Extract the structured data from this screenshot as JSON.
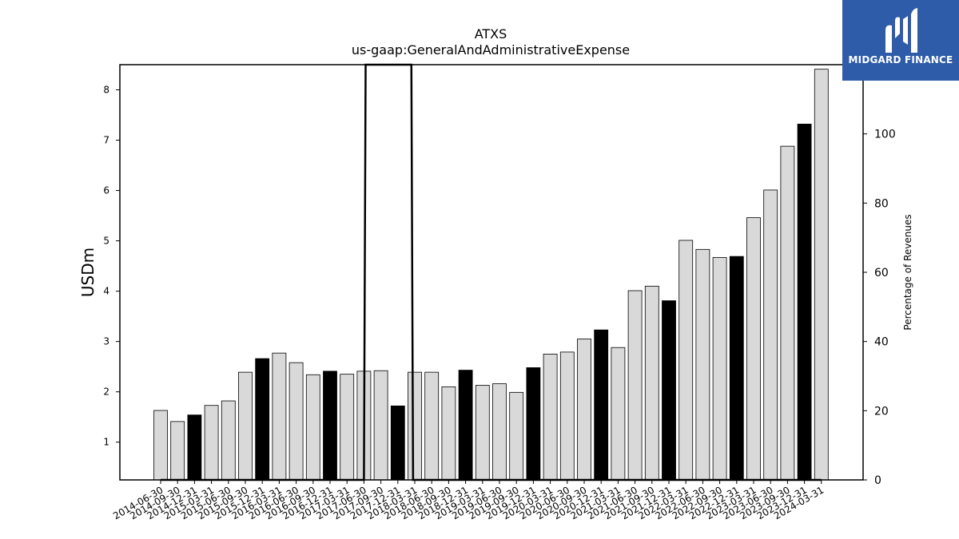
{
  "chart_data": {
    "type": "bar",
    "title": "ATXS",
    "subtitle": "us-gaap:GeneralAndAdministrativeExpense",
    "ylabel": "USDm",
    "y2label": "Percentage of Revenues",
    "ylim": [
      0.25,
      8.5
    ],
    "y2lim": [
      0,
      120
    ],
    "yticks": [
      1,
      2,
      3,
      4,
      5,
      6,
      7,
      8
    ],
    "y2ticks": [
      0,
      20,
      40,
      60,
      80,
      100
    ],
    "categories": [
      "2014-06-30",
      "2014-09-30",
      "2014-12-31",
      "2015-03-31",
      "2015-06-30",
      "2015-09-30",
      "2015-12-31",
      "2016-03-31",
      "2016-06-30",
      "2016-09-30",
      "2016-12-31",
      "2017-03-31",
      "2017-06-30",
      "2017-09-30",
      "2017-12-31",
      "2018-03-31",
      "2018-06-30",
      "2018-09-30",
      "2018-12-31",
      "2019-03-31",
      "2019-06-30",
      "2019-09-30",
      "2019-12-31",
      "2020-03-31",
      "2020-06-30",
      "2020-09-30",
      "2020-12-31",
      "2021-03-31",
      "2021-06-30",
      "2021-09-30",
      "2021-12-31",
      "2022-03-31",
      "2022-06-30",
      "2022-09-30",
      "2022-12-31",
      "2023-03-31",
      "2023-06-30",
      "2023-09-30",
      "2023-12-31",
      "2024-03-31"
    ],
    "values": [
      1.63,
      1.41,
      1.54,
      1.73,
      1.82,
      2.39,
      2.66,
      2.77,
      2.58,
      2.34,
      2.41,
      2.35,
      2.41,
      2.42,
      1.72,
      2.39,
      2.39,
      2.1,
      2.43,
      2.13,
      2.16,
      1.99,
      2.48,
      2.75,
      2.79,
      3.05,
      3.23,
      2.88,
      4.01,
      4.1,
      3.81,
      5.01,
      4.83,
      4.67,
      4.69,
      5.46,
      6.01,
      6.88,
      7.32,
      8.41
    ],
    "highlighted": [
      false,
      false,
      true,
      false,
      false,
      false,
      true,
      false,
      false,
      false,
      true,
      false,
      false,
      false,
      true,
      false,
      false,
      false,
      true,
      false,
      false,
      false,
      true,
      false,
      false,
      false,
      true,
      false,
      false,
      false,
      true,
      false,
      false,
      false,
      true,
      false,
      false,
      false,
      true,
      false
    ],
    "pct_line": {
      "name": "Percentage of Revenues",
      "points": [
        [
          0,
          0
        ],
        [
          12,
          0
        ],
        [
          12.1,
          600
        ],
        [
          14.8,
          600
        ],
        [
          14.9,
          0
        ],
        [
          39,
          0
        ]
      ]
    },
    "colors": {
      "bar": "#d9d9d9",
      "highlight": "#000000",
      "edge": "#000000",
      "line": "#000000"
    },
    "grid": false
  },
  "logo": {
    "text": "MIDGARD FINANCE",
    "bg": "#2e5ca8"
  }
}
